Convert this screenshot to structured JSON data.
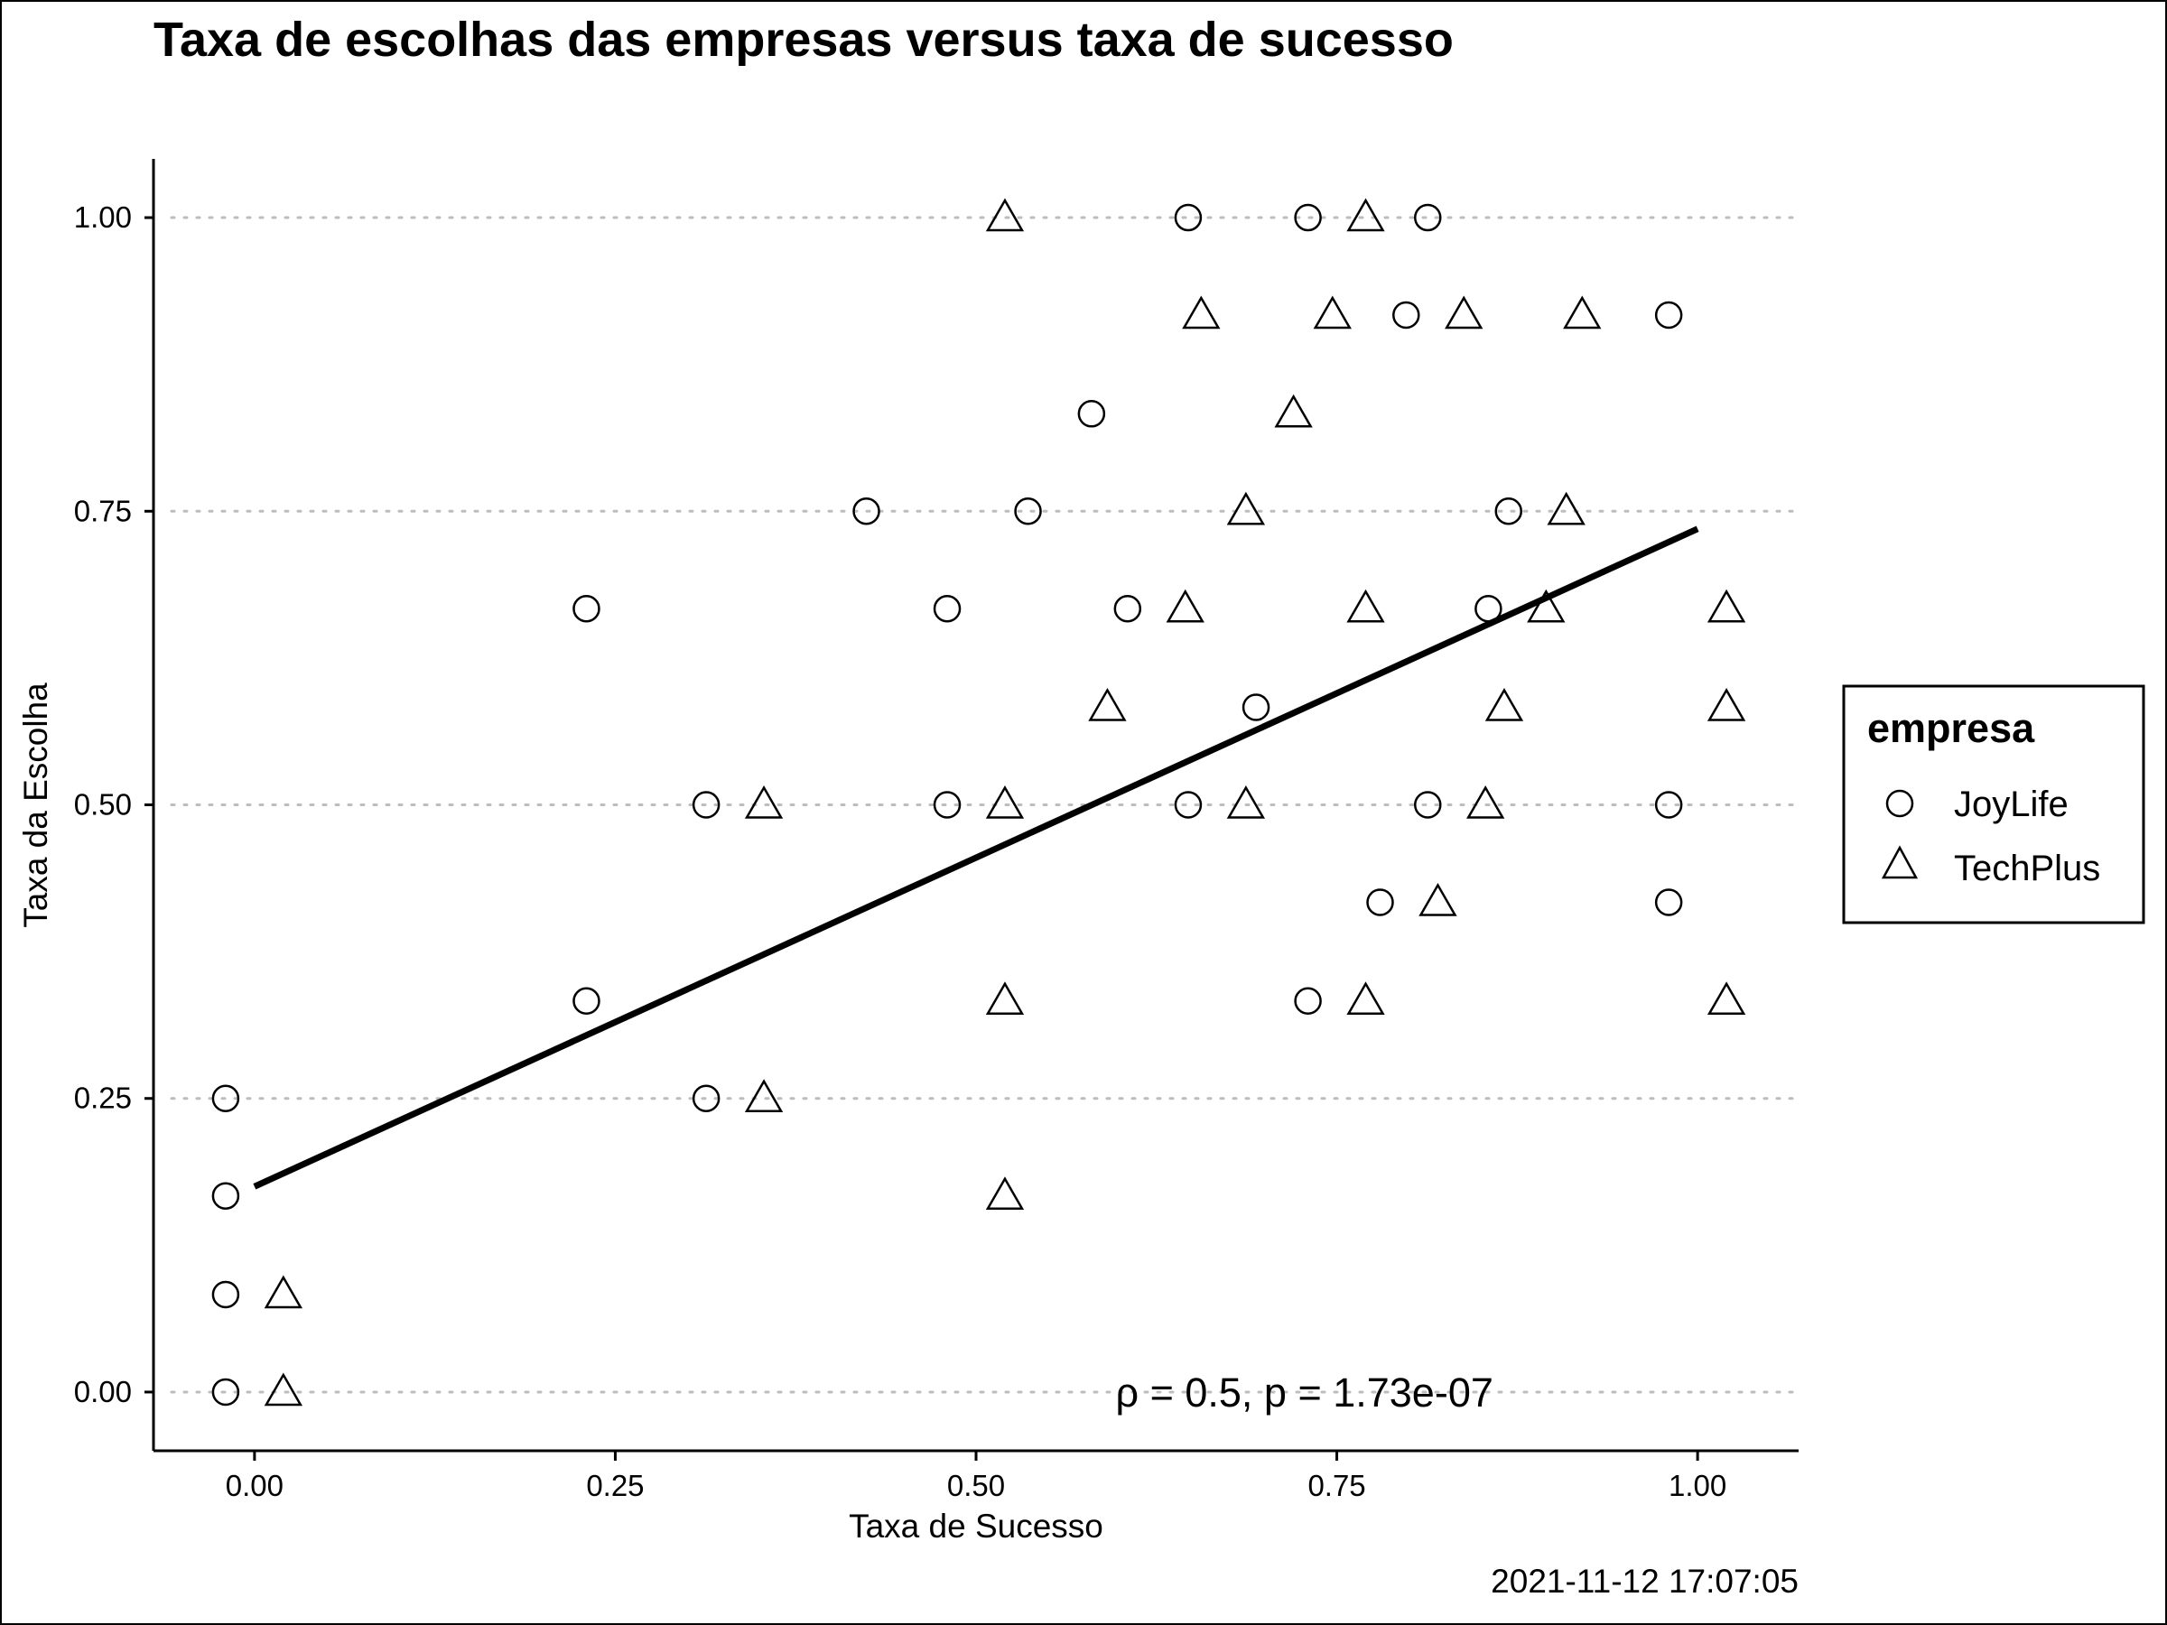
{
  "chart_data": {
    "type": "scatter",
    "title": "Taxa de escolhas das empresas versus taxa de sucesso",
    "xlabel": "Taxa de Sucesso",
    "ylabel": "Taxa da Escolha",
    "xlim": [
      -0.07,
      1.07
    ],
    "ylim": [
      -0.05,
      1.05
    ],
    "x_ticks": [
      0.0,
      0.25,
      0.5,
      0.75,
      1.0
    ],
    "x_tick_labels": [
      "0.00",
      "0.25",
      "0.50",
      "0.75",
      "1.00"
    ],
    "y_ticks": [
      0.0,
      0.25,
      0.5,
      0.75,
      1.0
    ],
    "y_tick_labels": [
      "0.00",
      "0.25",
      "0.50",
      "0.75",
      "1.00"
    ],
    "grid": "horizontal dotted at y ticks",
    "legend": {
      "title": "empresa",
      "placement": "right",
      "entries": [
        {
          "label": "JoyLife",
          "shape": "circle"
        },
        {
          "label": "TechPlus",
          "shape": "triangle"
        }
      ]
    },
    "series": [
      {
        "name": "JoyLife",
        "shape": "circle",
        "points": [
          [
            0.0,
            0.0
          ],
          [
            0.0,
            0.083
          ],
          [
            0.0,
            0.167
          ],
          [
            0.0,
            0.25
          ],
          [
            0.25,
            0.333
          ],
          [
            0.25,
            0.667
          ],
          [
            0.333,
            0.25
          ],
          [
            0.333,
            0.5
          ],
          [
            0.444,
            0.75
          ],
          [
            0.5,
            0.5
          ],
          [
            0.5,
            0.667
          ],
          [
            0.556,
            0.75
          ],
          [
            0.6,
            0.833
          ],
          [
            0.625,
            0.667
          ],
          [
            0.667,
            0.5
          ],
          [
            0.667,
            1.0
          ],
          [
            0.714,
            0.583
          ],
          [
            0.75,
            0.333
          ],
          [
            0.75,
            1.0
          ],
          [
            0.8,
            0.417
          ],
          [
            0.818,
            0.917
          ],
          [
            0.833,
            0.5
          ],
          [
            0.833,
            1.0
          ],
          [
            0.875,
            0.667
          ],
          [
            0.889,
            0.75
          ],
          [
            1.0,
            0.417
          ],
          [
            1.0,
            0.5
          ],
          [
            1.0,
            0.917
          ]
        ]
      },
      {
        "name": "TechPlus",
        "shape": "triangle",
        "points": [
          [
            0.0,
            0.0
          ],
          [
            0.0,
            0.083
          ],
          [
            0.333,
            0.25
          ],
          [
            0.333,
            0.5
          ],
          [
            0.5,
            0.167
          ],
          [
            0.5,
            0.333
          ],
          [
            0.5,
            0.5
          ],
          [
            0.5,
            1.0
          ],
          [
            0.571,
            0.583
          ],
          [
            0.625,
            0.667
          ],
          [
            0.636,
            0.917
          ],
          [
            0.667,
            0.5
          ],
          [
            0.667,
            0.75
          ],
          [
            0.7,
            0.833
          ],
          [
            0.727,
            0.917
          ],
          [
            0.75,
            0.333
          ],
          [
            0.75,
            0.667
          ],
          [
            0.75,
            1.0
          ],
          [
            0.8,
            0.417
          ],
          [
            0.818,
            0.917
          ],
          [
            0.833,
            0.5
          ],
          [
            0.846,
            0.583
          ],
          [
            0.875,
            0.667
          ],
          [
            0.889,
            0.75
          ],
          [
            0.9,
            0.917
          ],
          [
            1.0,
            0.333
          ],
          [
            1.0,
            0.583
          ],
          [
            1.0,
            0.667
          ]
        ]
      }
    ],
    "jitter": {
      "JoyLife": -0.02,
      "TechPlus": 0.02
    },
    "regression_line": {
      "x": [
        0.0,
        1.0
      ],
      "y": [
        0.175,
        0.735
      ]
    },
    "annotation": {
      "text": "ρ = 0.5, p = 1.73e-07",
      "x": 0.8,
      "y": 0.0
    },
    "caption": "2021-11-12 17:07:05"
  }
}
